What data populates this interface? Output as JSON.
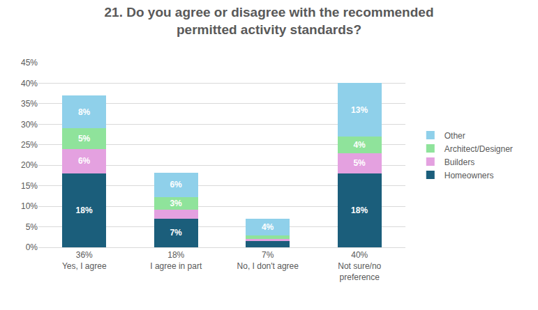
{
  "chart_data": {
    "type": "bar",
    "title": "21. Do you agree or disagree with the recommended\npermitted activity standards?",
    "categories": [
      "36%\nYes, I agree",
      "18%\nI agree in part",
      "7%\nNo, I don't agree",
      "40%\nNot sure/no\npreference"
    ],
    "series": [
      {
        "name": "Homeowners",
        "color": "#1b5e7b",
        "values": [
          18,
          7,
          1.6,
          18
        ],
        "value_labels": [
          "18%",
          "7%",
          null,
          "18%"
        ]
      },
      {
        "name": "Builders",
        "color": "#e4a1e0",
        "values": [
          6,
          2.2,
          0.5,
          5
        ],
        "value_labels": [
          "6%",
          null,
          null,
          "5%"
        ]
      },
      {
        "name": "Architect/Designer",
        "color": "#8fe39b",
        "values": [
          5,
          3,
          0.8,
          4
        ],
        "value_labels": [
          "5%",
          "3%",
          null,
          "4%"
        ]
      },
      {
        "name": "Other",
        "color": "#8fd0ea",
        "values": [
          8,
          6,
          4,
          13
        ],
        "value_labels": [
          "8%",
          "6%",
          "4%",
          "13%"
        ]
      }
    ],
    "stacked": true,
    "data_labels": true,
    "ylim": [
      0,
      45
    ],
    "yticks": [
      {
        "value": 0,
        "label": "0%"
      },
      {
        "value": 5,
        "label": "5%"
      },
      {
        "value": 10,
        "label": "10%"
      },
      {
        "value": 15,
        "label": "15%"
      },
      {
        "value": 20,
        "label": "20%"
      },
      {
        "value": 25,
        "label": "25%"
      },
      {
        "value": 30,
        "label": "30%"
      },
      {
        "value": 35,
        "label": "35%"
      },
      {
        "value": 40,
        "label": "40%"
      },
      {
        "value": 45,
        "label": "45%"
      }
    ],
    "grid": true,
    "legend": "right"
  }
}
